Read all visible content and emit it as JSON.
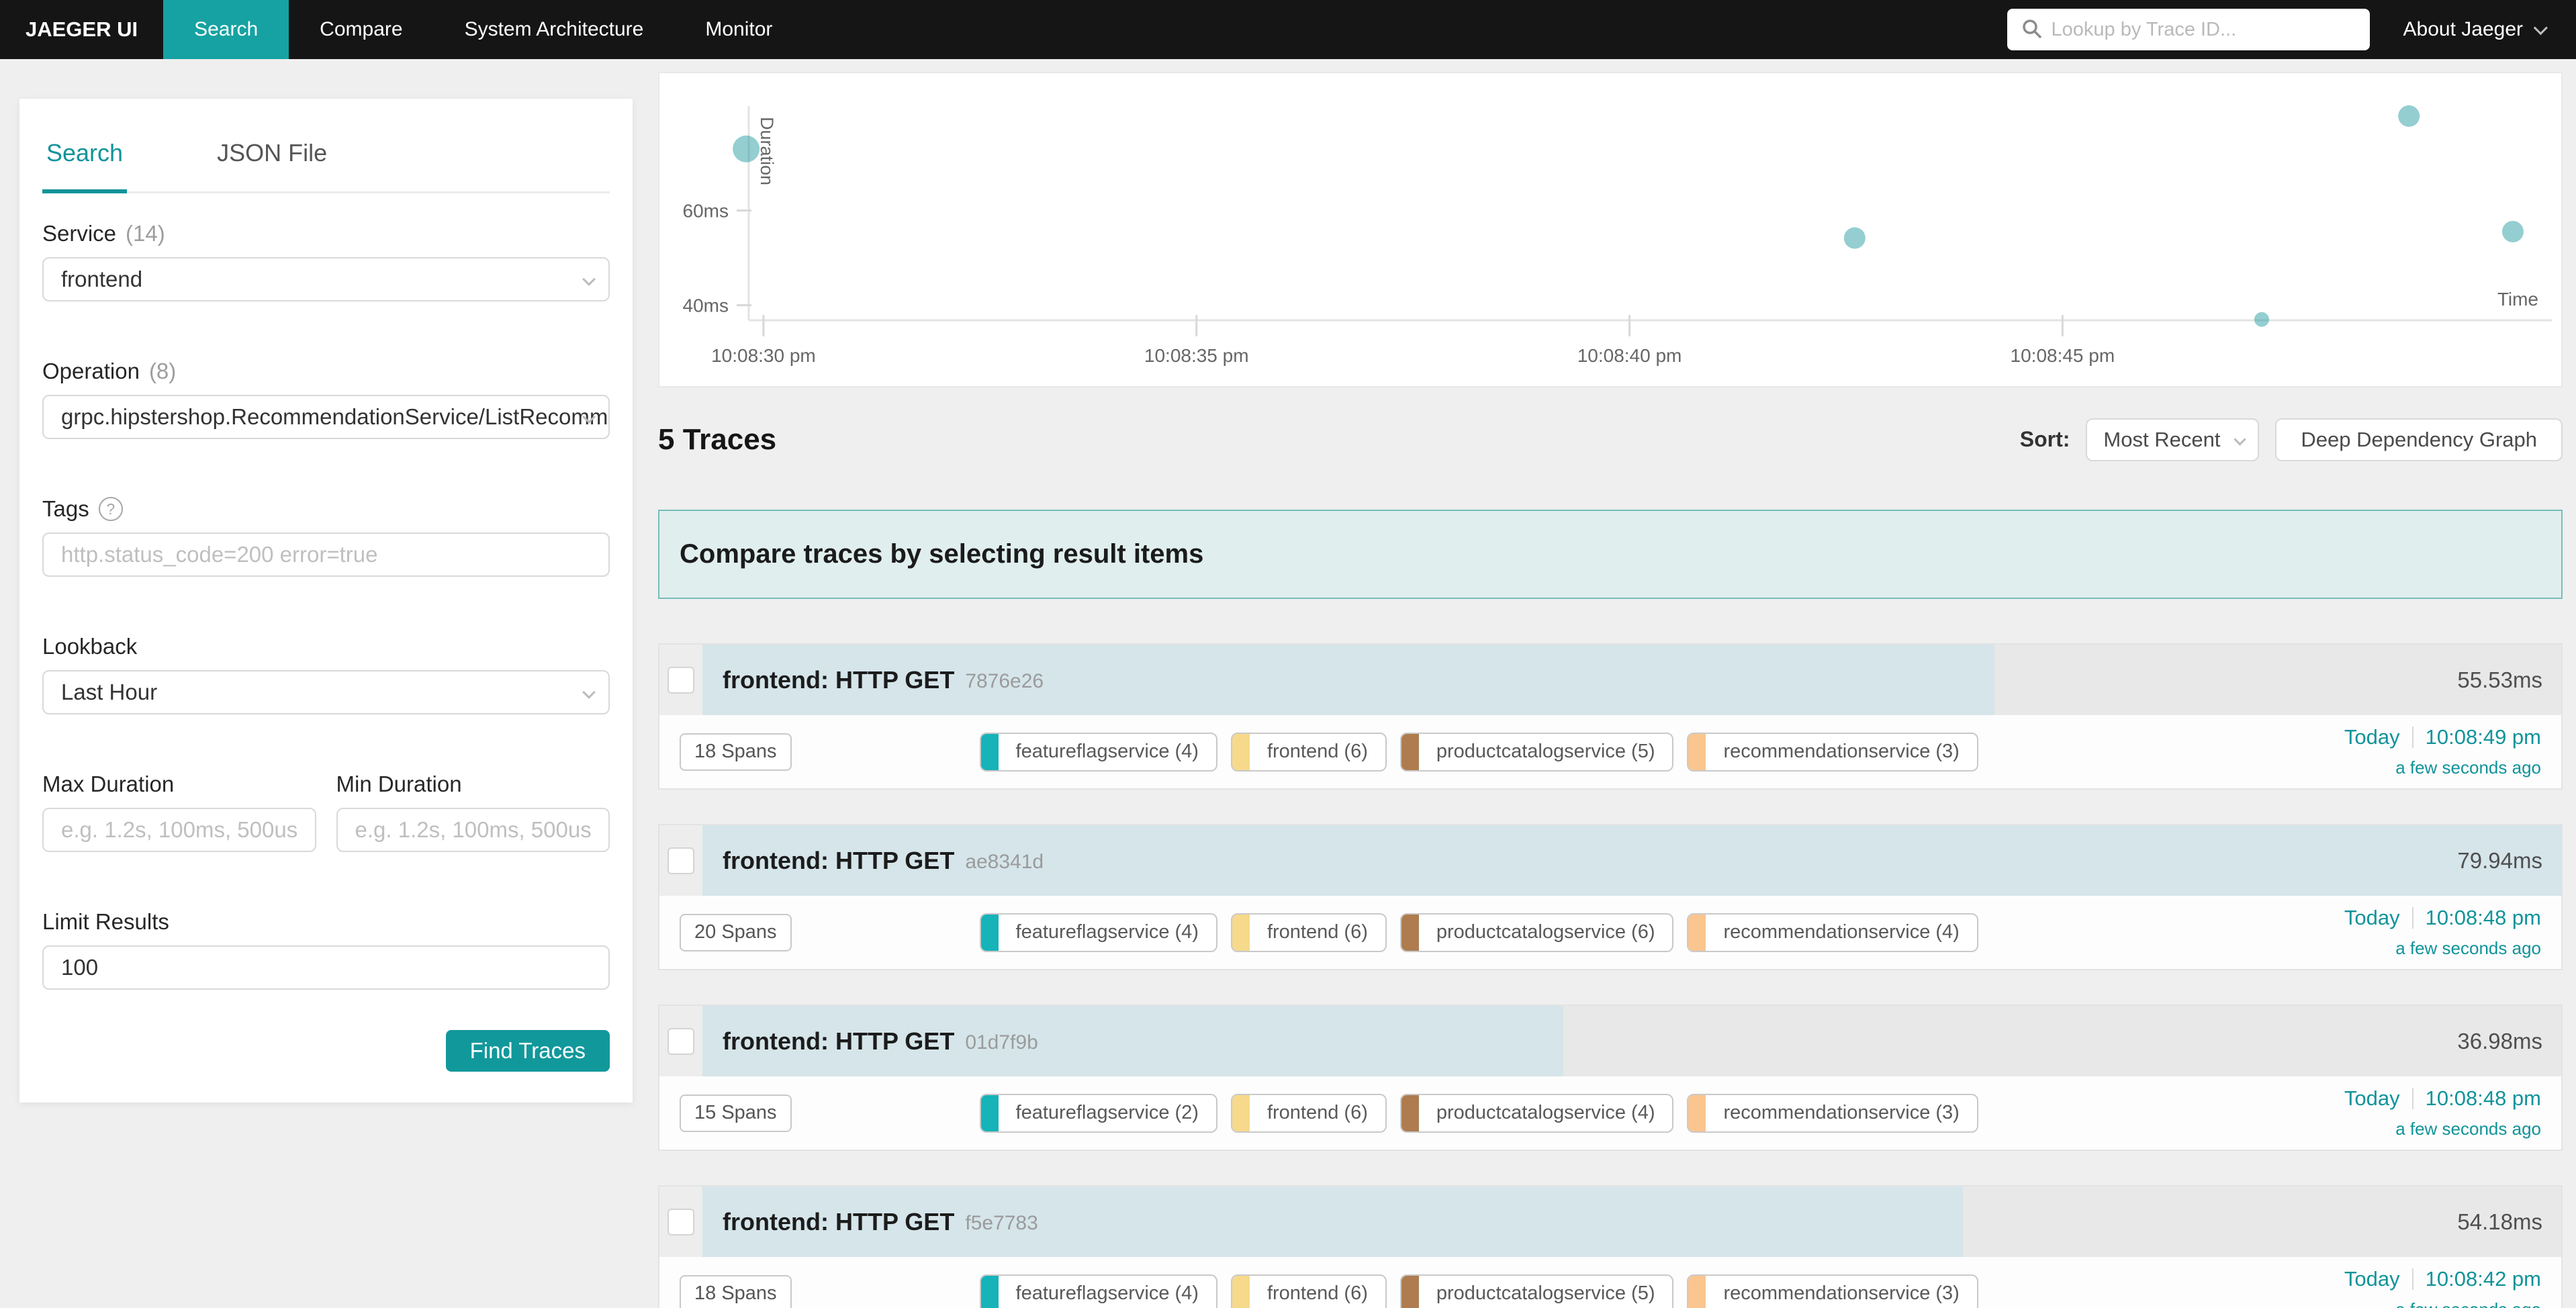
{
  "nav": {
    "brand": "JAEGER UI",
    "items": [
      {
        "label": "Search",
        "active": true
      },
      {
        "label": "Compare",
        "active": false
      },
      {
        "label": "System Architecture",
        "active": false
      },
      {
        "label": "Monitor",
        "active": false
      }
    ],
    "trace_lookup_placeholder": "Lookup by Trace ID...",
    "about_label": "About Jaeger"
  },
  "sidebar": {
    "tabs": [
      {
        "label": "Search",
        "active": true
      },
      {
        "label": "JSON File",
        "active": false
      }
    ],
    "service": {
      "label": "Service",
      "count": "(14)",
      "value": "frontend"
    },
    "operation": {
      "label": "Operation",
      "count": "(8)",
      "value": "grpc.hipstershop.RecommendationService/ListRecommend..."
    },
    "tags": {
      "label": "Tags",
      "placeholder": "http.status_code=200 error=true"
    },
    "lookback": {
      "label": "Lookback",
      "value": "Last Hour"
    },
    "max_duration": {
      "label": "Max Duration",
      "placeholder": "e.g. 1.2s, 100ms, 500us"
    },
    "min_duration": {
      "label": "Min Duration",
      "placeholder": "e.g. 1.2s, 100ms, 500us"
    },
    "limit": {
      "label": "Limit Results",
      "value": "100"
    },
    "find_button": "Find Traces"
  },
  "results_header": {
    "count_text": "5 Traces",
    "sort_label": "Sort:",
    "sort_value": "Most Recent",
    "ddg_button": "Deep Dependency Graph"
  },
  "banner_text": "Compare traces by selecting result items",
  "chart_data": {
    "type": "scatter",
    "xlabel": "Time",
    "ylabel": "Duration",
    "x_ticks": [
      {
        "t": 0,
        "label": "10:08:30 pm"
      },
      {
        "t": 5,
        "label": "10:08:35 pm"
      },
      {
        "t": 10,
        "label": "10:08:40 pm"
      },
      {
        "t": 15,
        "label": "10:08:45 pm"
      }
    ],
    "y_ticks": [
      {
        "ms": 40,
        "label": "40ms"
      },
      {
        "ms": 60,
        "label": "60ms"
      }
    ],
    "xlim_seconds": [
      -0.17,
      20.65
    ],
    "ylim_ms": [
      36.8,
      81.2
    ],
    "points": [
      {
        "t": -0.2,
        "ms": 73.0,
        "r": 20
      },
      {
        "t": 12.6,
        "ms": 54.18,
        "r": 16
      },
      {
        "t": 17.3,
        "ms": 36.98,
        "r": 11
      },
      {
        "t": 19.0,
        "ms": 79.94,
        "r": 16
      },
      {
        "t": 20.2,
        "ms": 55.53,
        "r": 16
      }
    ],
    "point_color": "rgba(18,147,154,0.45)",
    "axis_color": "#E3E3E3",
    "tick_color": "#D8D8D8",
    "label_color": "#666666"
  },
  "traces": [
    {
      "title": "frontend: HTTP GET",
      "id": "7876e26",
      "duration": "55.53ms",
      "bar_width": "69.5%",
      "spans": "18 Spans",
      "services": [
        {
          "name": "featureflagservice (4)",
          "color": "#16B3B9"
        },
        {
          "name": "frontend (6)",
          "color": "#F7D98B"
        },
        {
          "name": "productcatalogservice (5)",
          "color": "#AE7C4E"
        },
        {
          "name": "recommendationservice (3)",
          "color": "#FAC58F"
        }
      ],
      "date": "Today",
      "time": "10:08:49 pm",
      "relative": "a few seconds ago"
    },
    {
      "title": "frontend: HTTP GET",
      "id": "ae8341d",
      "duration": "79.94ms",
      "bar_width": "100%",
      "spans": "20 Spans",
      "services": [
        {
          "name": "featureflagservice (4)",
          "color": "#16B3B9"
        },
        {
          "name": "frontend (6)",
          "color": "#F7D98B"
        },
        {
          "name": "productcatalogservice (6)",
          "color": "#AE7C4E"
        },
        {
          "name": "recommendationservice (4)",
          "color": "#FAC58F"
        }
      ],
      "date": "Today",
      "time": "10:08:48 pm",
      "relative": "a few seconds ago"
    },
    {
      "title": "frontend: HTTP GET",
      "id": "01d7f9b",
      "duration": "36.98ms",
      "bar_width": "46.3%",
      "spans": "15 Spans",
      "services": [
        {
          "name": "featureflagservice (2)",
          "color": "#16B3B9"
        },
        {
          "name": "frontend (6)",
          "color": "#F7D98B"
        },
        {
          "name": "productcatalogservice (4)",
          "color": "#AE7C4E"
        },
        {
          "name": "recommendationservice (3)",
          "color": "#FAC58F"
        }
      ],
      "date": "Today",
      "time": "10:08:48 pm",
      "relative": "a few seconds ago"
    },
    {
      "title": "frontend: HTTP GET",
      "id": "f5e7783",
      "duration": "54.18ms",
      "bar_width": "67.8%",
      "spans": "18 Spans",
      "services": [
        {
          "name": "featureflagservice (4)",
          "color": "#16B3B9"
        },
        {
          "name": "frontend (6)",
          "color": "#F7D98B"
        },
        {
          "name": "productcatalogservice (5)",
          "color": "#AE7C4E"
        },
        {
          "name": "recommendationservice (3)",
          "color": "#FAC58F"
        }
      ],
      "date": "Today",
      "time": "10:08:42 pm",
      "relative": "a few seconds ago"
    }
  ]
}
